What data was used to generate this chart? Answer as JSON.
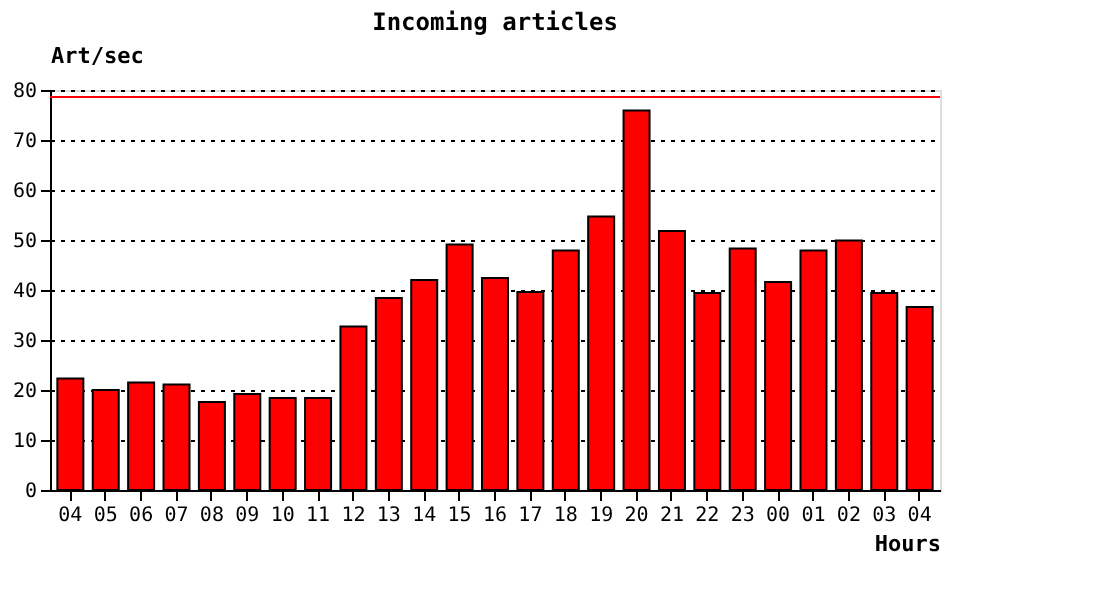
{
  "chart_data": {
    "type": "bar",
    "title": "Incoming articles",
    "ylabel": "Art/sec",
    "xlabel": "Hours",
    "categories": [
      "04",
      "05",
      "06",
      "07",
      "08",
      "09",
      "10",
      "11",
      "12",
      "13",
      "14",
      "15",
      "16",
      "17",
      "18",
      "19",
      "20",
      "21",
      "22",
      "23",
      "00",
      "01",
      "02",
      "03",
      "04"
    ],
    "values": [
      22.3,
      20.0,
      21.5,
      21.1,
      17.6,
      19.2,
      18.4,
      18.4,
      32.7,
      38.4,
      42.0,
      49.1,
      42.4,
      39.6,
      47.9,
      54.7,
      75.9,
      51.8,
      39.4,
      48.3,
      41.6,
      47.9,
      49.9,
      39.4,
      36.6
    ],
    "color": "#ff0000",
    "ylim": [
      0,
      80
    ],
    "yticks": [
      0,
      10,
      20,
      30,
      40,
      50,
      60,
      70,
      80
    ],
    "grid": "y",
    "line_style": "dotted",
    "ref_lines": [
      {
        "axis": "y",
        "value": 78.6,
        "color": "#ff0000",
        "line_style": "solid"
      }
    ]
  }
}
